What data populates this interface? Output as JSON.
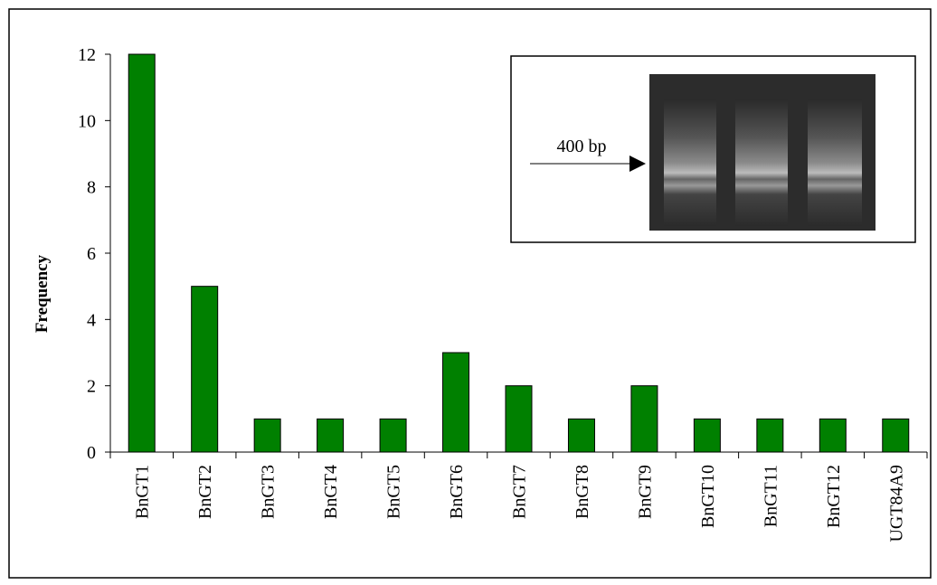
{
  "chart_data": {
    "type": "bar",
    "y_label": "Frequency",
    "categories": [
      "BnGT1",
      "BnGT2",
      "BnGT3",
      "BnGT4",
      "BnGT5",
      "BnGT6",
      "BnGT7",
      "BnGT8",
      "BnGT9",
      "BnGT10",
      "BnGT11",
      "BnGT12",
      "UGT84A9"
    ],
    "values": [
      12,
      5,
      1,
      1,
      1,
      3,
      2,
      1,
      2,
      1,
      1,
      1,
      1
    ],
    "color": "#008000",
    "ylim": [
      0,
      12
    ],
    "yticks": [
      0,
      2,
      4,
      6,
      8,
      10,
      12
    ],
    "grid": false,
    "inset_label": "400 bp"
  }
}
